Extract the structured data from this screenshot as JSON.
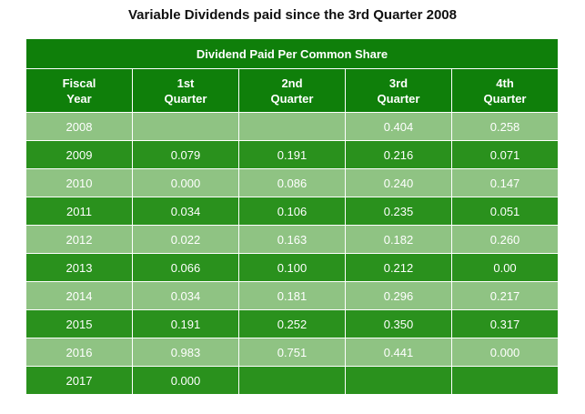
{
  "title": "Variable Dividends paid since the 3rd Quarter 2008",
  "table": {
    "banner": "Dividend Paid Per Common Share",
    "headers": [
      [
        "Fiscal",
        "Year"
      ],
      [
        "1st",
        "Quarter"
      ],
      [
        "2nd",
        "Quarter"
      ],
      [
        "3rd",
        "Quarter"
      ],
      [
        "4th",
        "Quarter"
      ]
    ],
    "rows": [
      [
        "2008",
        "",
        "",
        "0.404",
        "0.258"
      ],
      [
        "2009",
        "0.079",
        "0.191",
        "0.216",
        "0.071"
      ],
      [
        "2010",
        "0.000",
        "0.086",
        "0.240",
        "0.147"
      ],
      [
        "2011",
        "0.034",
        "0.106",
        "0.235",
        "0.051"
      ],
      [
        "2012",
        "0.022",
        "0.163",
        "0.182",
        "0.260"
      ],
      [
        "2013",
        "0.066",
        "0.100",
        "0.212",
        "0.00"
      ],
      [
        "2014",
        "0.034",
        "0.181",
        "0.296",
        "0.217"
      ],
      [
        "2015",
        "0.191",
        "0.252",
        "0.350",
        "0.317"
      ],
      [
        "2016",
        "0.983",
        "0.751",
        "0.441",
        "0.000"
      ],
      [
        "2017",
        "0.000",
        "",
        "",
        ""
      ]
    ],
    "colors": {
      "banner": "#0f7f0a",
      "dark_row": "#2a911d",
      "light_row": "#8fc383",
      "text": "#ffffff"
    }
  }
}
